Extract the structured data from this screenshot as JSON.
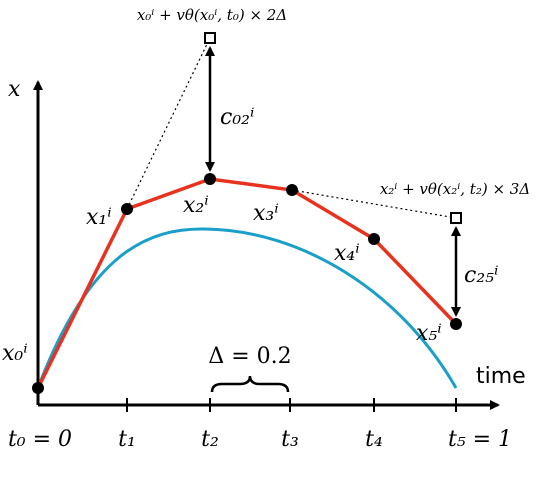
{
  "axes": {
    "y_label": "x",
    "x_label": "time"
  },
  "ticks": [
    "t₀ = 0",
    "t₁",
    "t₂",
    "t₃",
    "t₄",
    "t₅ = 1"
  ],
  "nodes": [
    "x₀ⁱ",
    "x₁ⁱ",
    "x₂ⁱ",
    "x₃ⁱ",
    "x₄ⁱ",
    "x₅ⁱ"
  ],
  "annotations": {
    "jump_1": "x₀ⁱ + vθ(x₀ⁱ, t₀) × 2Δ",
    "jump_2": "x₂ⁱ + vθ(x₂ⁱ, t₂) × 3Δ",
    "cost_1": "c₀₂ⁱ",
    "cost_2": "c₂₅ⁱ",
    "step": "Δ = 0.2"
  }
}
